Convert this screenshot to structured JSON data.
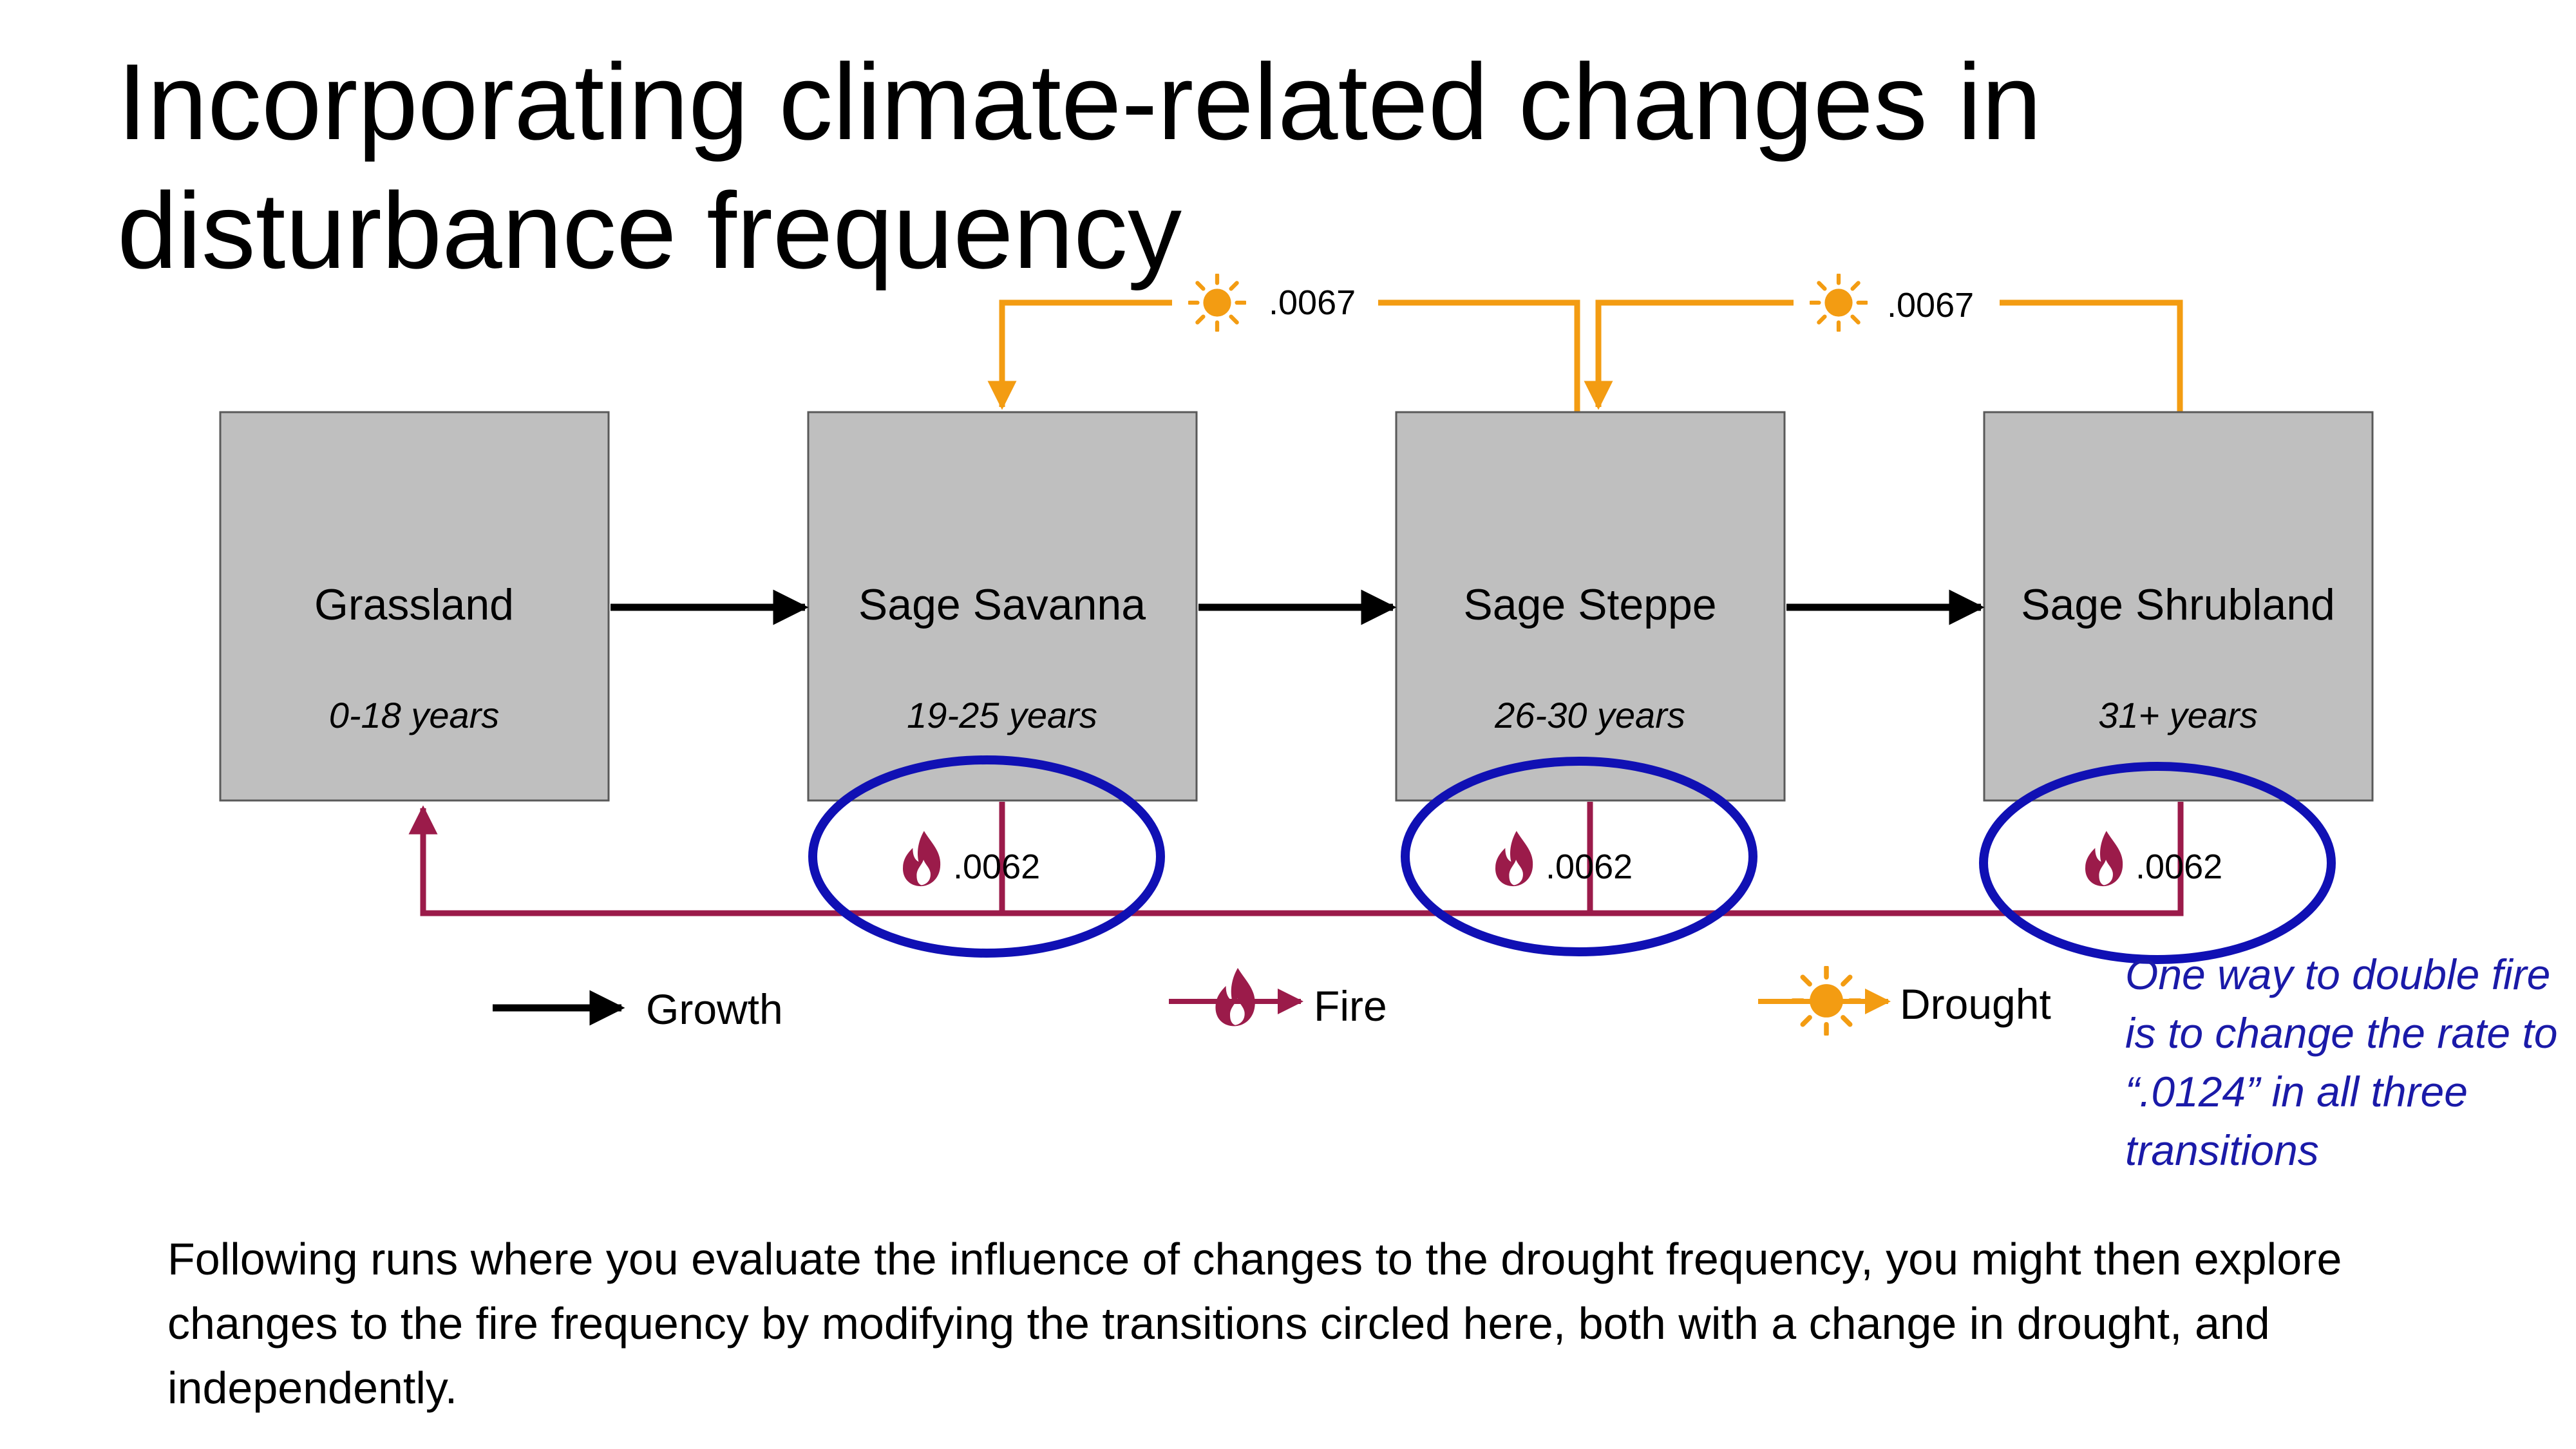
{
  "title": "Incorporating climate-related changes in disturbance frequency",
  "states": [
    {
      "name": "Grassland",
      "years": "0-18 years"
    },
    {
      "name": "Sage Savanna",
      "years": "19-25 years"
    },
    {
      "name": "Sage Steppe",
      "years": "26-30 years"
    },
    {
      "name": "Sage Shrubland",
      "years": "31+ years"
    }
  ],
  "drought_rates": [
    ".0067",
    ".0067"
  ],
  "fire_rates": [
    ".0062",
    ".0062",
    ".0062"
  ],
  "legend": {
    "growth": "Growth",
    "fire": "Fire",
    "drought": "Drought"
  },
  "note": "One way to double fire is to change the rate to “.0124” in all three transitions",
  "footer": "Following runs where you evaluate the influence of changes to the drought frequency, you might then explore changes to the fire frequency by modifying the transitions circled here, both with a change in drought, and independently.",
  "colors": {
    "box_fill": "#bfbfbf",
    "fire": "#9b1b4a",
    "drought": "#f39c12",
    "highlight": "#1010b4"
  },
  "icons": {
    "fire": "flame-icon",
    "drought": "sun-icon"
  }
}
